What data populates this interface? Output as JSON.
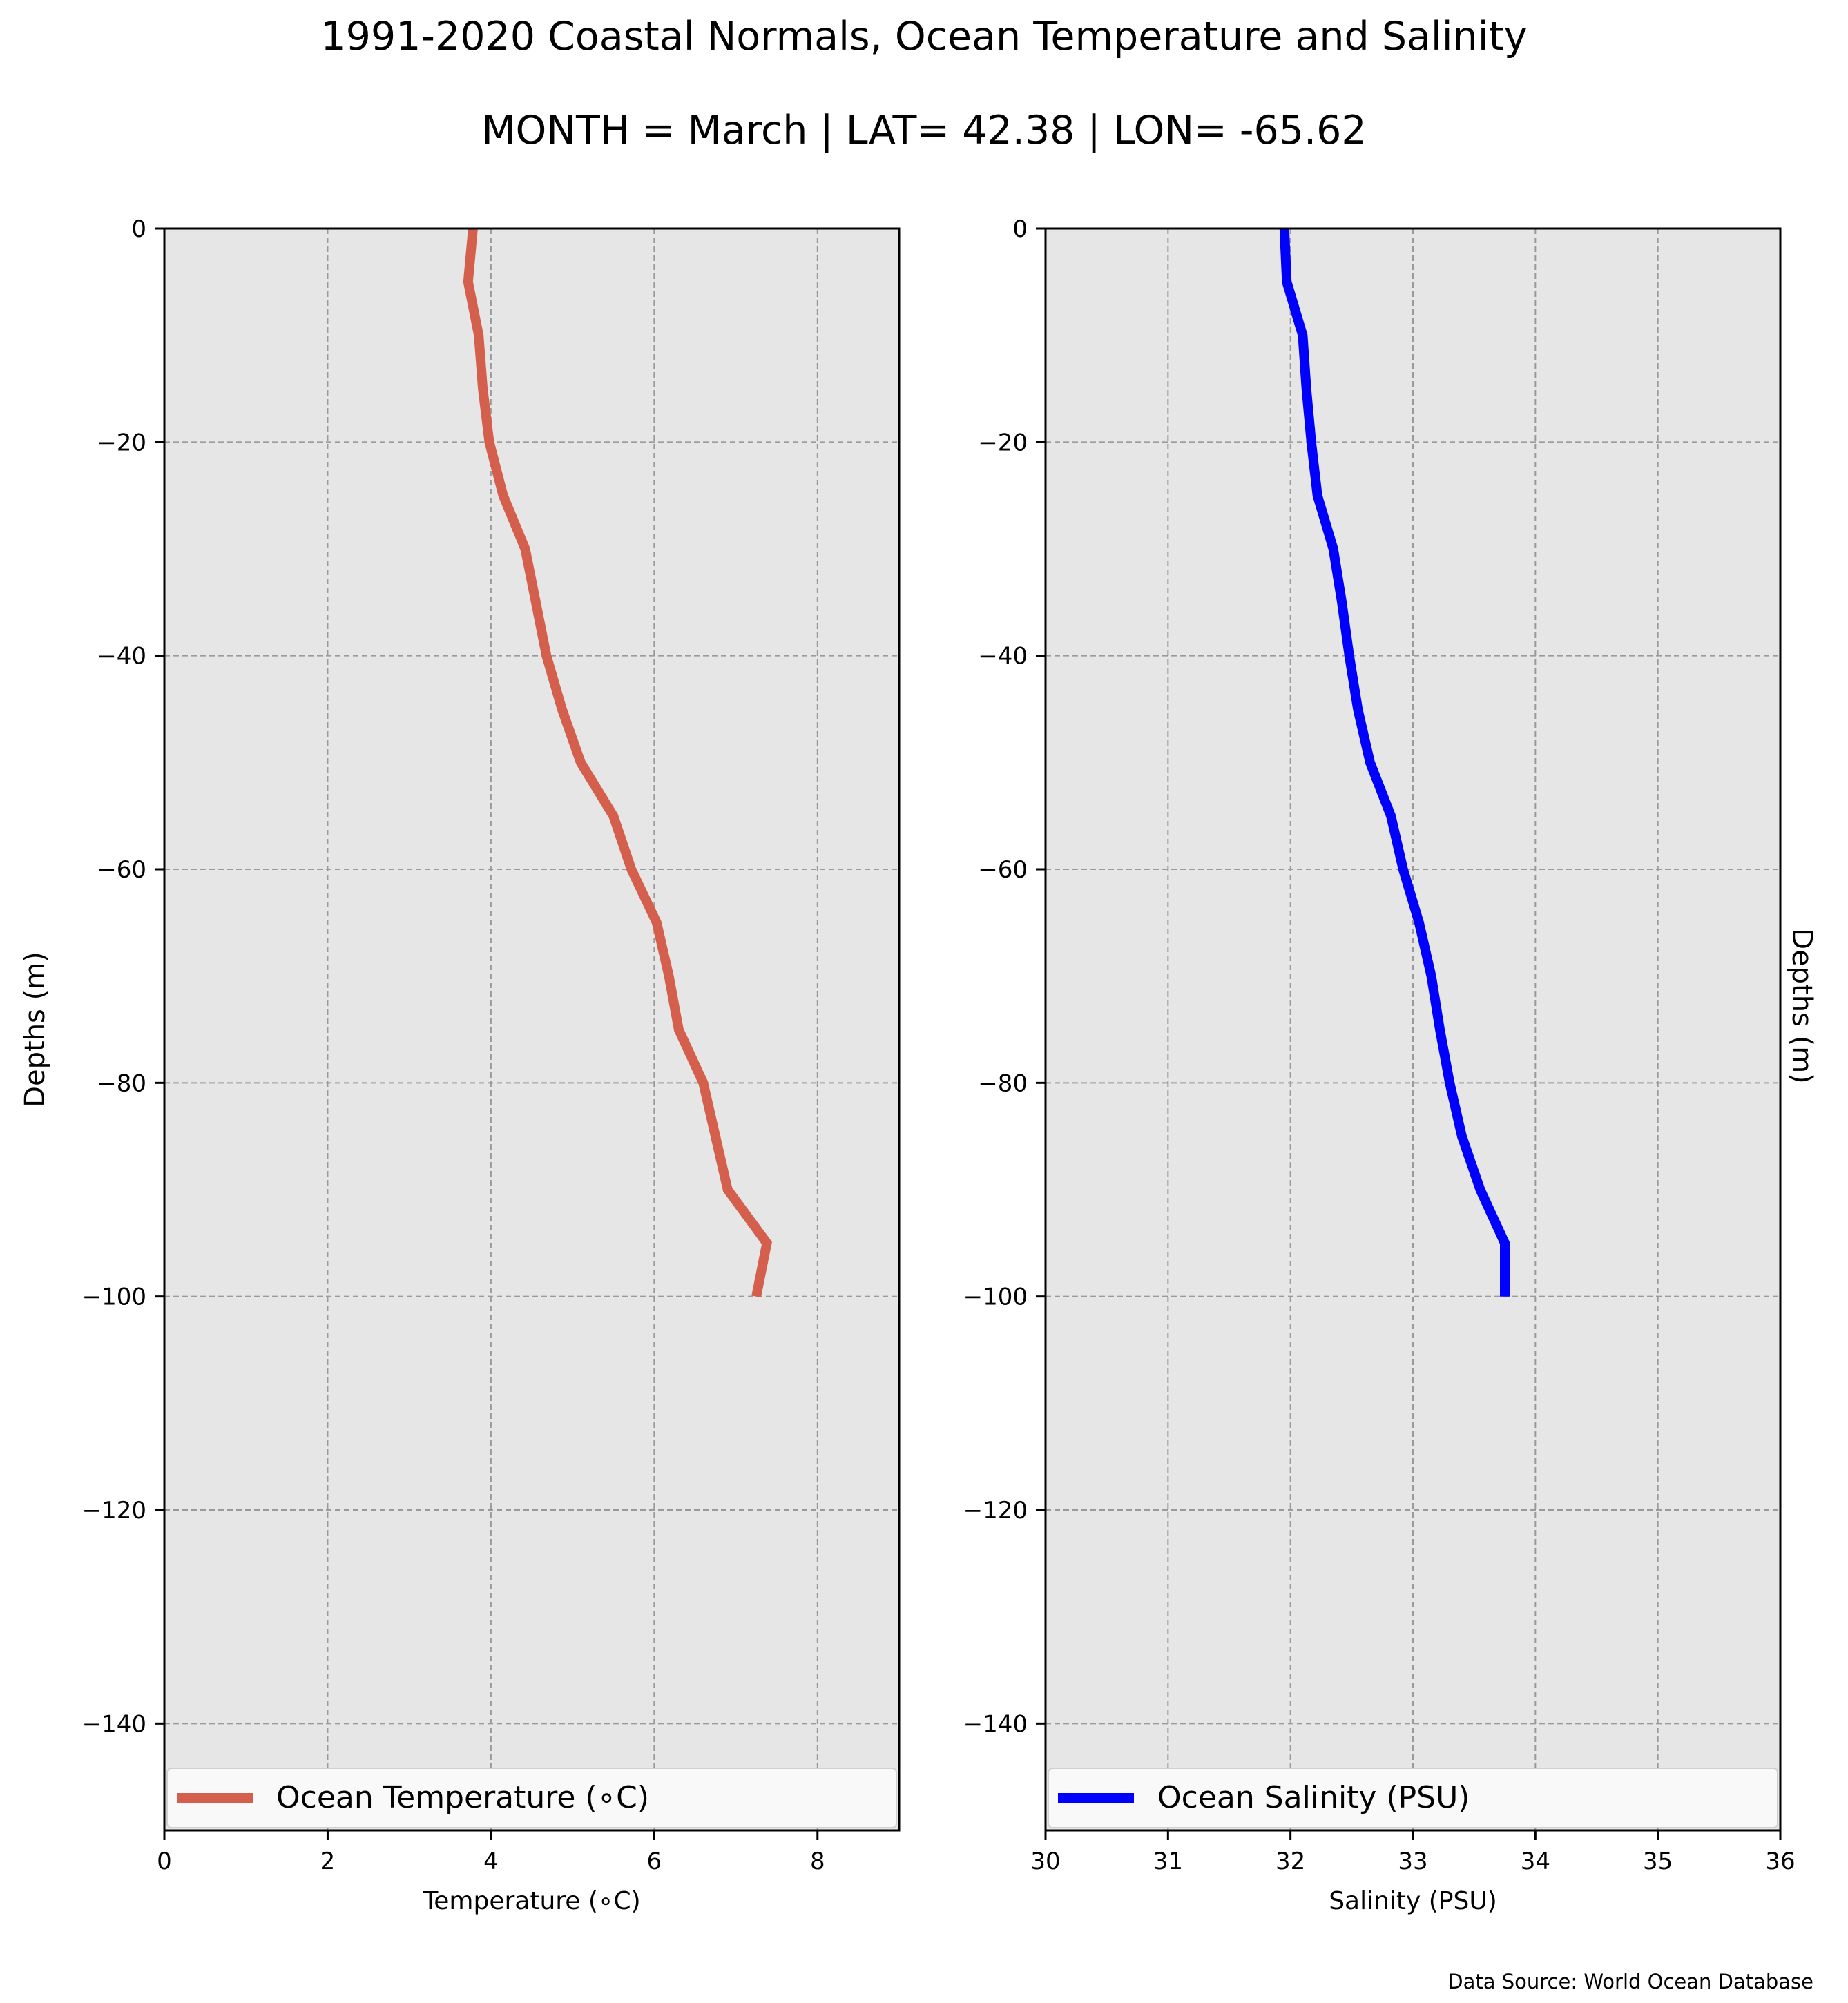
{
  "figure": {
    "title": "1991-2020 Coastal Normals, Ocean Temperature and Salinity",
    "subtitle": "MONTH = March | LAT= 42.38 | LON= -65.62",
    "source": "Data Source: World Ocean Database"
  },
  "colors": {
    "panel_bg": "#e6e6e6",
    "grid": "#9a9a9a",
    "temperature_line": "#d45f4d",
    "salinity_line": "#0000ff",
    "legend_bg": "#f9f9f9"
  },
  "chart_data": [
    {
      "type": "line",
      "xlabel": "Temperature (∘C)",
      "ylabel": "Depths (m)",
      "xlim": [
        0,
        9
      ],
      "ylim": [
        -150,
        0
      ],
      "x_ticks": [
        0,
        2,
        4,
        6,
        8
      ],
      "y_ticks": [
        0,
        -20,
        -40,
        -60,
        -80,
        -100,
        -120,
        -140
      ],
      "grid": true,
      "legend_position": "bottom",
      "series": [
        {
          "name": "Ocean Temperature (∘C)",
          "color": "#d45f4d",
          "x": [
            3.78,
            3.72,
            3.85,
            3.9,
            3.98,
            4.15,
            4.42,
            4.55,
            4.68,
            4.87,
            5.1,
            5.5,
            5.72,
            6.03,
            6.18,
            6.3,
            6.6,
            6.75,
            6.9,
            7.38,
            7.25
          ],
          "y": [
            0,
            -5,
            -10,
            -15,
            -20,
            -25,
            -30,
            -35,
            -40,
            -45,
            -50,
            -55,
            -60,
            -65,
            -70,
            -75,
            -80,
            -85,
            -90,
            -95,
            -100
          ]
        }
      ]
    },
    {
      "type": "line",
      "xlabel": "Salinity (PSU)",
      "ylabel": "Depths (m)",
      "xlim": [
        30,
        36
      ],
      "ylim": [
        -150,
        0
      ],
      "x_ticks": [
        30,
        31,
        32,
        33,
        34,
        35,
        36
      ],
      "y_ticks": [
        0,
        -20,
        -40,
        -60,
        -80,
        -100,
        -120,
        -140
      ],
      "grid": true,
      "legend_position": "bottom",
      "series": [
        {
          "name": "Ocean Salinity (PSU)",
          "color": "#0000ff",
          "x": [
            31.95,
            31.97,
            32.1,
            32.13,
            32.17,
            32.22,
            32.35,
            32.42,
            32.48,
            32.55,
            32.65,
            32.82,
            32.92,
            33.05,
            33.15,
            33.22,
            33.3,
            33.4,
            33.55,
            33.75,
            33.75
          ],
          "y": [
            0,
            -5,
            -10,
            -15,
            -20,
            -25,
            -30,
            -35,
            -40,
            -45,
            -50,
            -55,
            -60,
            -65,
            -70,
            -75,
            -80,
            -85,
            -90,
            -95,
            -100
          ]
        }
      ]
    }
  ]
}
